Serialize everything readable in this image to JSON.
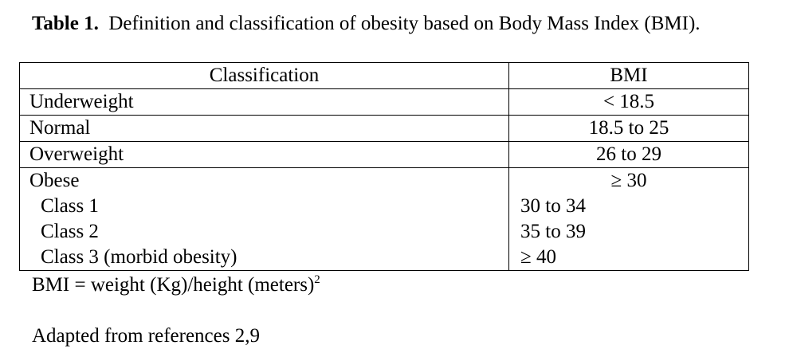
{
  "caption": {
    "label": "Table 1.",
    "text": "Definition and classification of obesity based on Body Mass Index (BMI)."
  },
  "table": {
    "headers": [
      "Classification",
      "BMI"
    ],
    "rows": [
      {
        "classification": "Underweight",
        "bmi": "< 18.5"
      },
      {
        "classification": "Normal",
        "bmi": "18.5 to 25"
      },
      {
        "classification": "Overweight",
        "bmi": "26 to 29"
      },
      {
        "classification": "Obese",
        "bmi": "≥ 30"
      },
      {
        "classification": "Class 1",
        "bmi": "30 to 34"
      },
      {
        "classification": "Class 2",
        "bmi": "35 to 39"
      },
      {
        "classification": "Class 3 (morbid obesity)",
        "bmi": "≥ 40"
      }
    ]
  },
  "footnotes": {
    "formula": "BMI = weight (Kg)/height (meters)",
    "formula_sup": "2",
    "source": "Adapted from references 2,9"
  }
}
